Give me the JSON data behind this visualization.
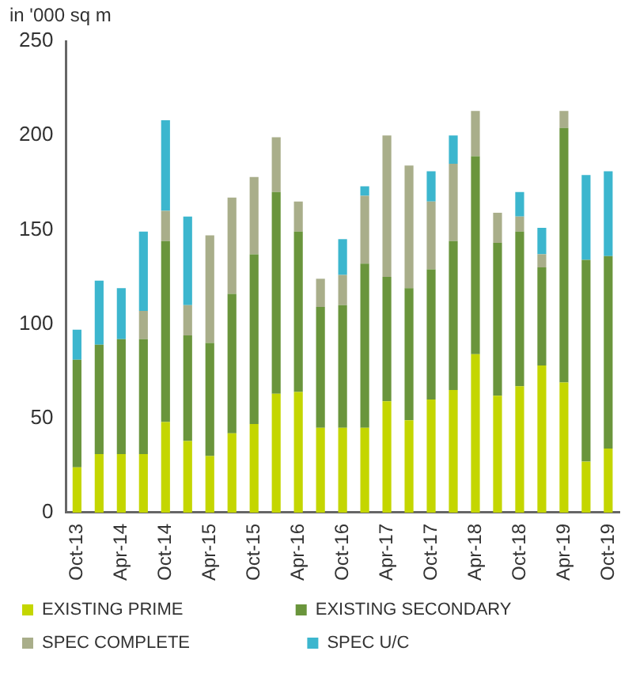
{
  "chart_data": {
    "type": "bar",
    "stacked": true,
    "ylabel": "in '000 sq m",
    "categories": [
      "Oct-13",
      null,
      "Apr-14",
      null,
      "Oct-14",
      null,
      "Apr-15",
      null,
      "Oct-15",
      null,
      "Apr-16",
      null,
      "Oct-16",
      null,
      "Apr-17",
      null,
      "Oct-17",
      null,
      "Apr-18",
      null,
      "Oct-18",
      null,
      "Apr-19",
      null,
      "Oct-19"
    ],
    "series": [
      {
        "name": "EXISTING PRIME",
        "color": "#c4d600",
        "values": [
          24,
          31,
          31,
          31,
          48,
          38,
          30,
          42,
          47,
          63,
          64,
          45,
          45,
          45,
          59,
          49,
          60,
          65,
          84,
          62,
          67,
          78,
          69,
          27,
          34
        ]
      },
      {
        "name": "EXISTING SECONDARY",
        "color": "#6a953c",
        "values": [
          57,
          58,
          61,
          61,
          96,
          56,
          60,
          74,
          90,
          107,
          85,
          64,
          65,
          87,
          66,
          70,
          69,
          79,
          105,
          81,
          82,
          52,
          135,
          107,
          102
        ]
      },
      {
        "name": "SPEC COMPLETE",
        "color": "#a9ae8a",
        "values": [
          0,
          0,
          0,
          15,
          16,
          16,
          57,
          51,
          41,
          29,
          16,
          15,
          16,
          36,
          75,
          65,
          36,
          41,
          24,
          16,
          8,
          7,
          9,
          0,
          0
        ]
      },
      {
        "name": "SPEC U/C",
        "color": "#3cb6ce",
        "values": [
          16,
          34,
          27,
          42,
          48,
          47,
          0,
          0,
          0,
          0,
          0,
          0,
          19,
          5,
          0,
          0,
          16,
          15,
          0,
          0,
          13,
          14,
          0,
          45,
          45
        ]
      }
    ],
    "ylim": [
      0,
      250
    ],
    "yticks": [
      0,
      50,
      100,
      150,
      200,
      250
    ],
    "grid": false,
    "legend": "bottom"
  }
}
